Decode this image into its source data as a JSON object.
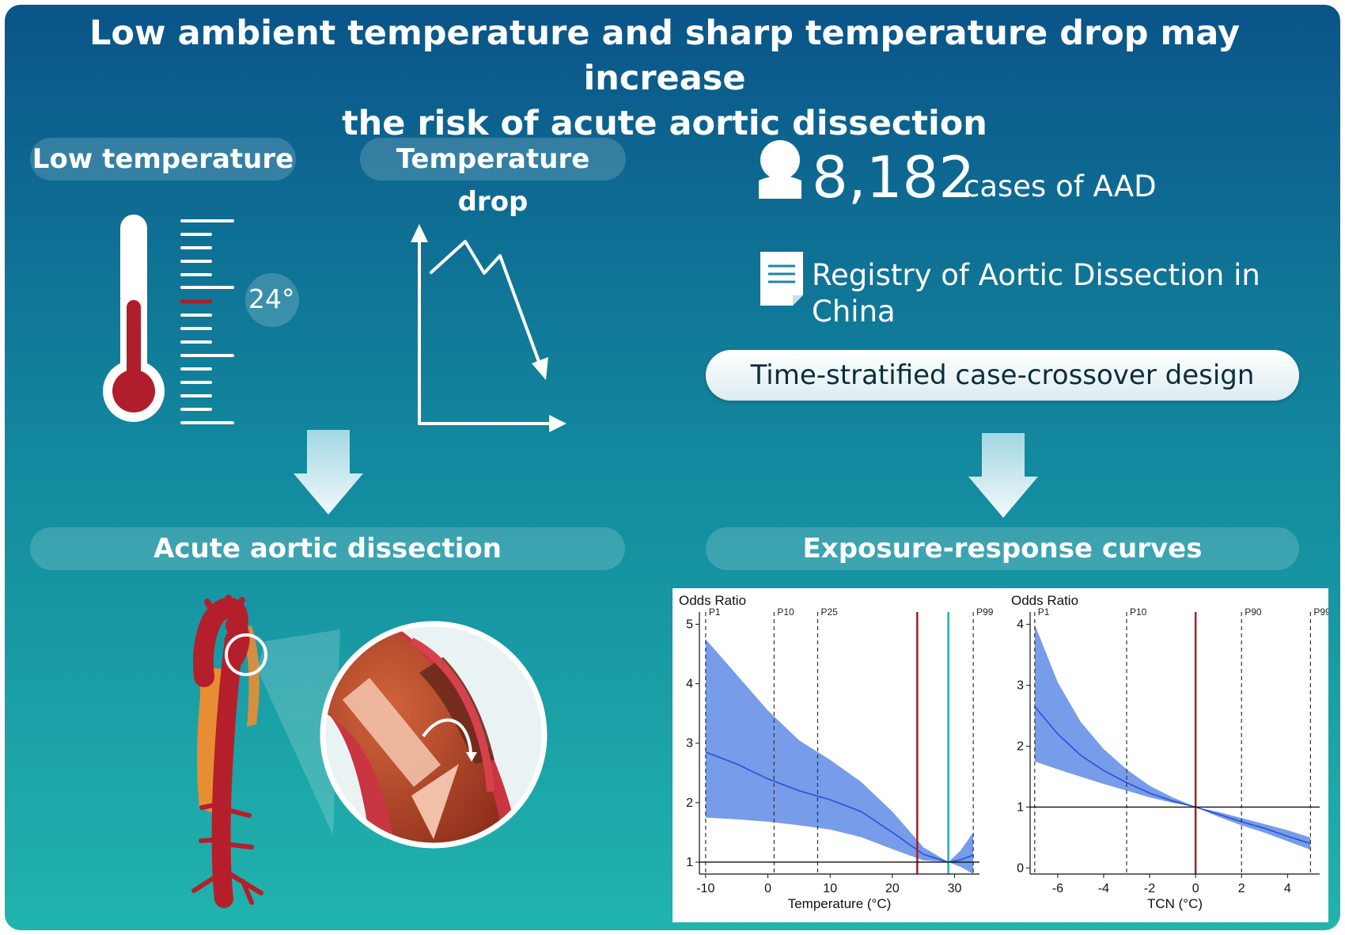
{
  "title": {
    "line1": "Low ambient temperature and sharp temperature drop may increase",
    "line2": "the risk of acute aortic dissection"
  },
  "labels": {
    "low_temperature": "Low temperature",
    "temperature_drop": "Temperature drop",
    "thermometer_reading": "24°",
    "acute_aortic_dissection": "Acute aortic dissection",
    "exposure_response_curves": "Exposure-response curves"
  },
  "study": {
    "case_count": "8,182",
    "case_label": "cases of AAD",
    "registry": "Registry of Aortic Dissection in China",
    "design": "Time-stratified case-crossover design"
  },
  "icons": [
    "person-icon",
    "document-icon",
    "thermometer-icon",
    "temperature-drop-graph-icon",
    "down-arrow-icon",
    "aorta-illustration",
    "dissection-magnifier"
  ],
  "colors": {
    "background_top": "#0b5a8a",
    "background_bottom": "#1fb0ab",
    "band": "#6f97e9",
    "curve": "#2a4fd8",
    "red_line": "#a52024",
    "teal_line": "#1fb0a5",
    "thermometer_fill": "#b01e2b"
  },
  "chart_data": [
    {
      "type": "line",
      "ylabel": "Odds Ratio",
      "xlabel": "Temperature (°C)",
      "xlim": [
        -11,
        34
      ],
      "ylim": [
        0.8,
        5.1
      ],
      "xticks": [
        -10,
        0,
        10,
        20,
        30
      ],
      "yticks": [
        1,
        2,
        3,
        4,
        5
      ],
      "percentile_lines": [
        {
          "label": "P1",
          "x": -10
        },
        {
          "label": "P10",
          "x": 1
        },
        {
          "label": "P25",
          "x": 8
        },
        {
          "label": "P99",
          "x": 33
        }
      ],
      "red_line_x": 24,
      "teal_line_x": 29,
      "reference_y": 1,
      "x": [
        -10,
        -5,
        0,
        5,
        10,
        15,
        20,
        25,
        29,
        31,
        33
      ],
      "or": [
        2.85,
        2.65,
        2.4,
        2.2,
        2.05,
        1.85,
        1.5,
        1.13,
        1.0,
        1.04,
        1.12
      ],
      "lower": [
        1.75,
        1.72,
        1.68,
        1.62,
        1.55,
        1.42,
        1.22,
        1.03,
        1.0,
        0.92,
        0.8
      ],
      "upper": [
        4.75,
        4.15,
        3.55,
        3.05,
        2.72,
        2.35,
        1.85,
        1.25,
        1.0,
        1.2,
        1.5
      ]
    },
    {
      "type": "line",
      "ylabel": "Odds Ratio",
      "xlabel": "TCN (°C)",
      "xlim": [
        -7.2,
        5.4
      ],
      "ylim": [
        -0.1,
        4.1
      ],
      "xticks": [
        -6,
        -4,
        -2,
        0,
        2,
        4
      ],
      "yticks": [
        0,
        1,
        2,
        3,
        4
      ],
      "percentile_lines": [
        {
          "label": "P1",
          "x": -7
        },
        {
          "label": "P10",
          "x": -3
        },
        {
          "label": "P90",
          "x": 2
        },
        {
          "label": "P99",
          "x": 5
        }
      ],
      "red_line_x": 0,
      "reference_y": 1,
      "x": [
        -7,
        -6,
        -5,
        -4,
        -3,
        -2,
        -1,
        0,
        1,
        2,
        3,
        4,
        5
      ],
      "or": [
        2.65,
        2.2,
        1.85,
        1.6,
        1.4,
        1.23,
        1.1,
        1.0,
        0.88,
        0.76,
        0.65,
        0.52,
        0.4
      ],
      "lower": [
        1.75,
        1.62,
        1.5,
        1.38,
        1.27,
        1.16,
        1.07,
        1.0,
        0.84,
        0.7,
        0.58,
        0.44,
        0.3
      ],
      "upper": [
        4.0,
        3.05,
        2.4,
        1.95,
        1.62,
        1.35,
        1.16,
        1.0,
        0.92,
        0.82,
        0.72,
        0.62,
        0.5
      ]
    }
  ]
}
